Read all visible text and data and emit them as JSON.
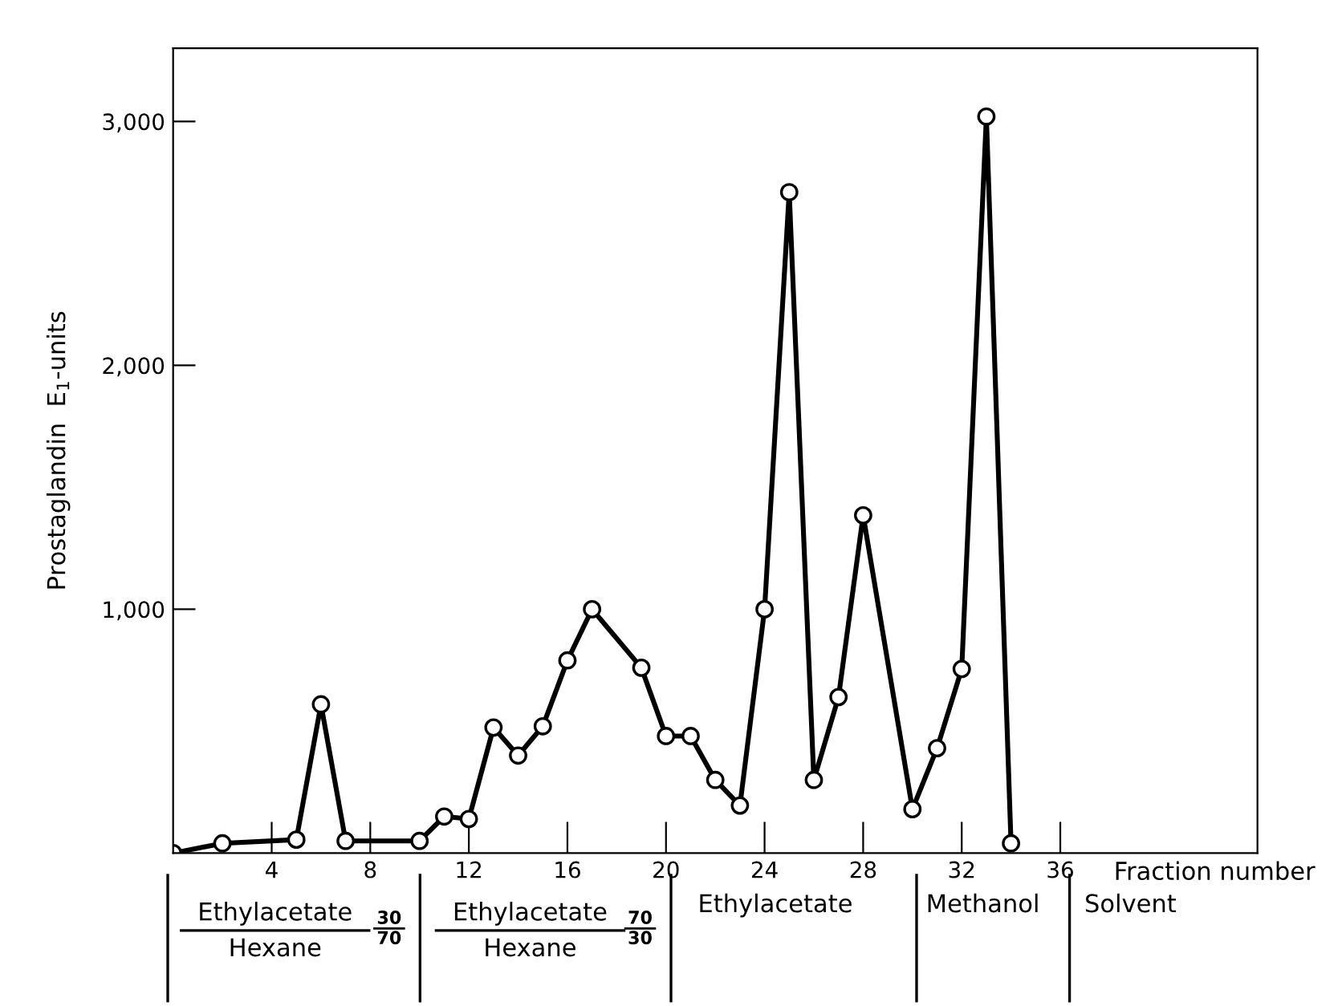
{
  "chart_data": {
    "type": "line",
    "xlabel": "Fraction number",
    "ylabel": "Prostaglandin  E$_{1}$-units",
    "x": [
      0,
      2,
      5,
      6,
      7,
      10,
      11,
      12,
      13,
      14,
      15,
      16,
      17,
      19,
      20,
      21,
      22,
      23,
      24,
      25,
      26,
      27,
      28,
      30,
      31,
      32,
      33,
      34
    ],
    "series": [
      {
        "color": "#000000",
        "values": [
          0,
          40,
          55,
          610,
          50,
          50,
          150,
          140,
          515,
          400,
          520,
          790,
          1000,
          760,
          480,
          480,
          300,
          195,
          1000,
          2710,
          300,
          640,
          1385,
          180,
          430,
          755,
          3020,
          40
        ]
      }
    ],
    "xlim": [
      0,
      44
    ],
    "xticks": [
      4,
      8,
      12,
      16,
      20,
      24,
      28,
      32,
      36
    ],
    "ylim": [
      0,
      3300
    ],
    "yticks": [
      {
        "value": 1000,
        "label": "1,000"
      },
      {
        "value": 2000,
        "label": "2,000"
      },
      {
        "value": 3000,
        "label": "3,000"
      }
    ],
    "marker": "circle",
    "line_style": "solid",
    "grid": false,
    "annotations": [
      "Ethylacetate\nHexane",
      "30\n70",
      "Ethylacetate\nHexane",
      "70\n30",
      "Ethylacetate",
      "Methanol",
      "Solvent"
    ]
  }
}
